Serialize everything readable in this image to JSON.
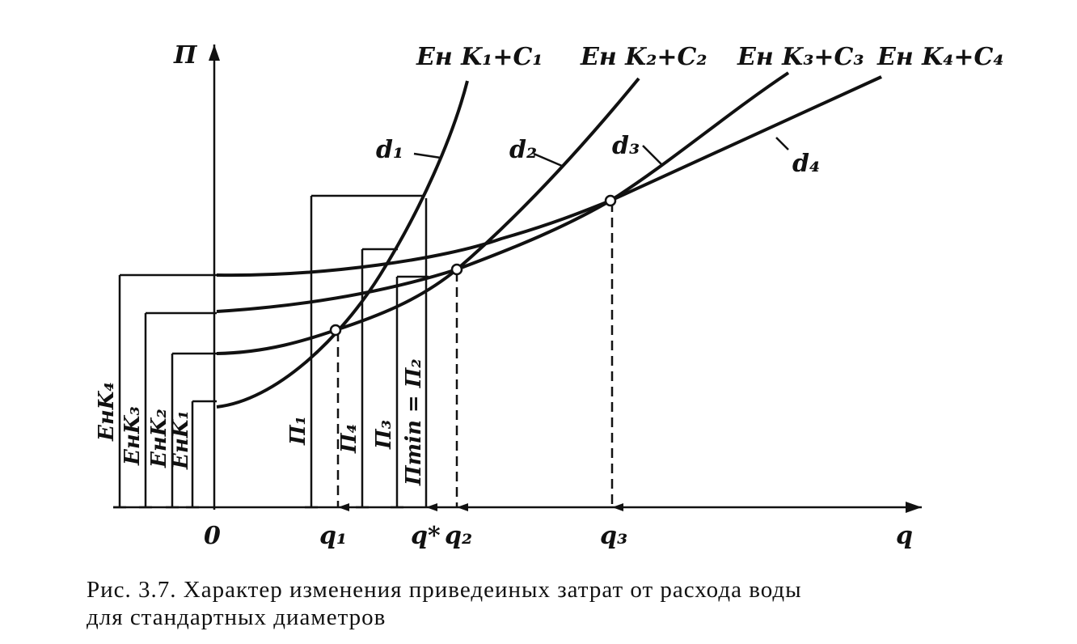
{
  "axes": {
    "y_label": "П",
    "x_label": "q",
    "origin": "0"
  },
  "curves": [
    {
      "formula": "Eн K₁+C₁",
      "label": "d₁"
    },
    {
      "formula": "Eн K₂+C₂",
      "label": "d₂"
    },
    {
      "formula": "Eн K₃+C₃",
      "label": "d₃"
    },
    {
      "formula": "Eн K₄+C₄",
      "label": "d₄"
    }
  ],
  "x_marks": [
    "q₁",
    "q*",
    "q₂",
    "q₃"
  ],
  "left_levels": [
    "EнK₄",
    "EнK₃",
    "EнK₂",
    "EнK₁"
  ],
  "cost_levels": [
    "П₁",
    "П₄",
    "П₃",
    "Пmin = П₂"
  ],
  "caption": [
    "Рис. 3.7. Характер изменения приведеиных затрат от расхода воды",
    "для стандартных диаметров"
  ]
}
